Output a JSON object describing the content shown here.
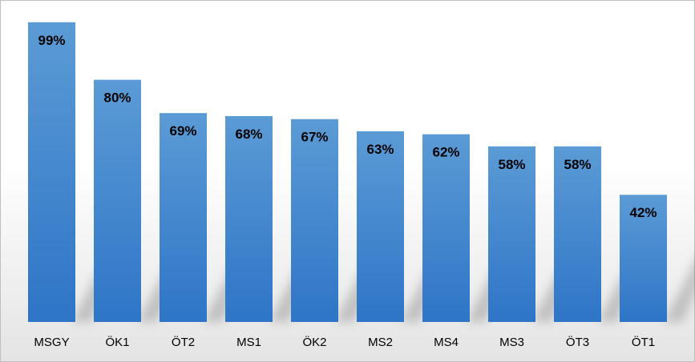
{
  "chart_data": {
    "type": "bar",
    "categories": [
      "MSGY",
      "ÖK1",
      "ÖT2",
      "MS1",
      "ÖK2",
      "MS2",
      "MS4",
      "MS3",
      "ÖT3",
      "ÖT1"
    ],
    "values": [
      99,
      80,
      69,
      68,
      67,
      63,
      62,
      58,
      58,
      42
    ],
    "data_labels": [
      "99%",
      "80%",
      "69%",
      "68%",
      "67%",
      "63%",
      "62%",
      "58%",
      "58%",
      "42%"
    ],
    "ylim": [
      0,
      100
    ],
    "grid": false,
    "legend": "none",
    "bar_color_top": "#5b9bd5",
    "bar_color_bottom": "#2e75c7",
    "title": "",
    "xlabel": "",
    "ylabel": ""
  }
}
